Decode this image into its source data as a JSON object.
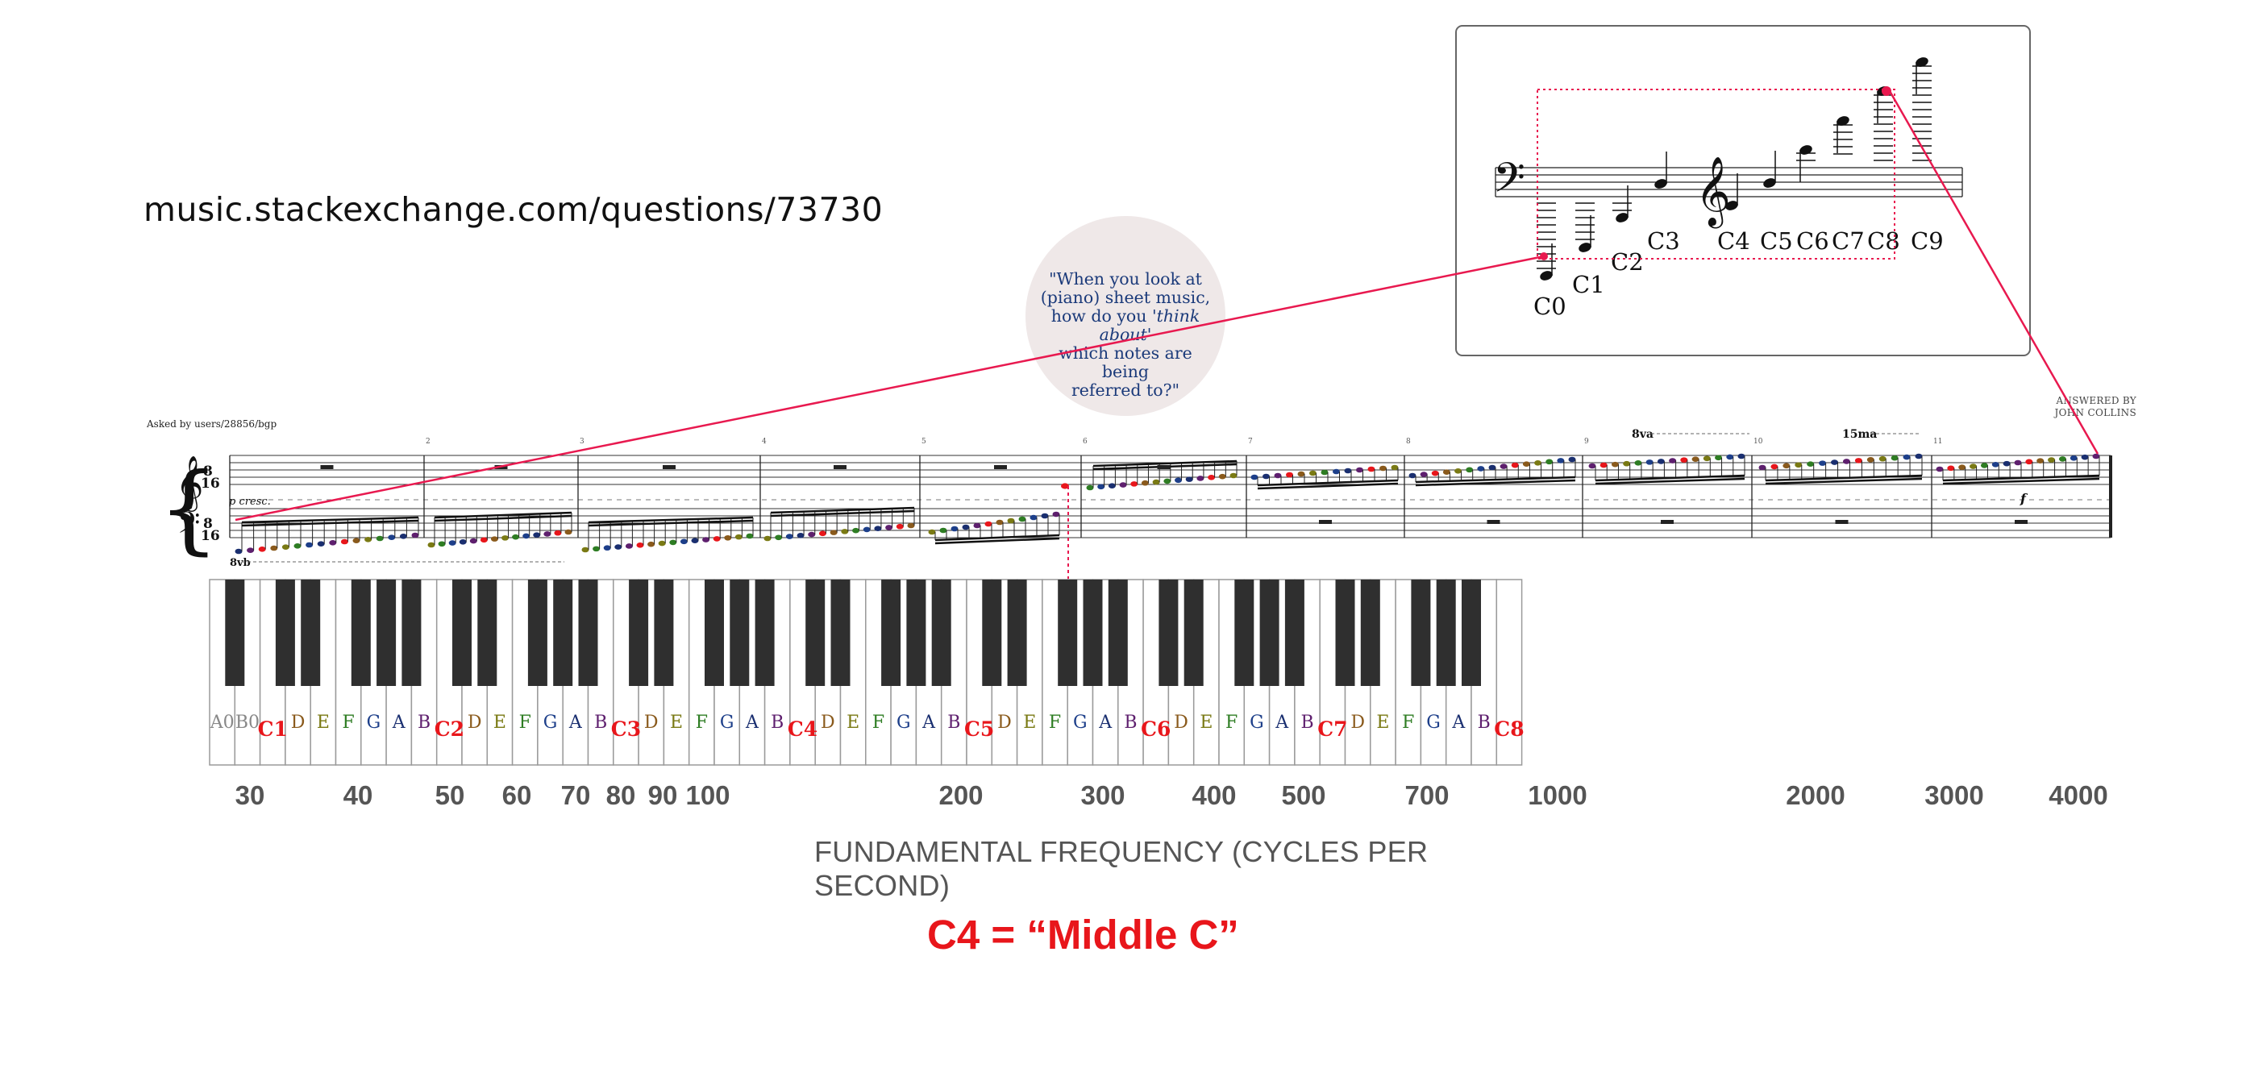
{
  "source_url": "music.stackexchange.com/questions/73730",
  "question_bubble": {
    "line1": "\"When you look at",
    "line2": "(piano) sheet music,",
    "line3_pre": "how do you '",
    "line3_em": "think about",
    "line3_post": "'",
    "line4": "which notes are being",
    "line5": "referred to?\""
  },
  "asked_by": "Asked by users/28856/bgp",
  "answered_by": {
    "line1": "ANSWERED BY",
    "line2": "JOHN COLLINS"
  },
  "score": {
    "time_signature": {
      "top": "8",
      "bottom": "16"
    },
    "dynamic_start": "p cresc.",
    "dynamic_end": "f",
    "octave_low": "8vb",
    "octave_high_1": "8va",
    "octave_high_2": "15ma",
    "measure_numbers": [
      "2",
      "3",
      "4",
      "5",
      "6",
      "7",
      "8",
      "9",
      "10",
      "11"
    ]
  },
  "inset_labels": [
    "C0",
    "C1",
    "C2",
    "C3",
    "C4",
    "C5",
    "C6",
    "C7",
    "C8",
    "C9"
  ],
  "keyboard_labels": [
    "A0",
    "B0",
    "C1",
    "D",
    "E",
    "F",
    "G",
    "A",
    "B",
    "C2",
    "D",
    "E",
    "F",
    "G",
    "A",
    "B",
    "C3",
    "D",
    "E",
    "F",
    "G",
    "A",
    "B",
    "C4",
    "D",
    "E",
    "F",
    "G",
    "A",
    "B",
    "C5",
    "D",
    "E",
    "F",
    "G",
    "A",
    "B",
    "C6",
    "D",
    "E",
    "F",
    "G",
    "A",
    "B",
    "C7",
    "D",
    "E",
    "F",
    "G",
    "A",
    "B",
    "C8"
  ],
  "note_colors": {
    "C": "#e8161b",
    "D": "#8a5a1c",
    "E": "#7a7a14",
    "F": "#2e7d23",
    "G": "#1d3f8a",
    "A": "#1a2f70",
    "B": "#5e1f6e",
    "other": "#999999"
  },
  "frequency_axis": {
    "title": "FUNDAMENTAL FREQUENCY (CYCLES PER SECOND)",
    "ticks": [
      "30",
      "40",
      "50",
      "60",
      "70",
      "80",
      "90",
      "100",
      "200",
      "300",
      "400",
      "500",
      "700",
      "1000",
      "2000",
      "3000",
      "4000"
    ]
  },
  "middle_c_label": "C4 = “Middle C”",
  "accent_color": "#e8194f"
}
